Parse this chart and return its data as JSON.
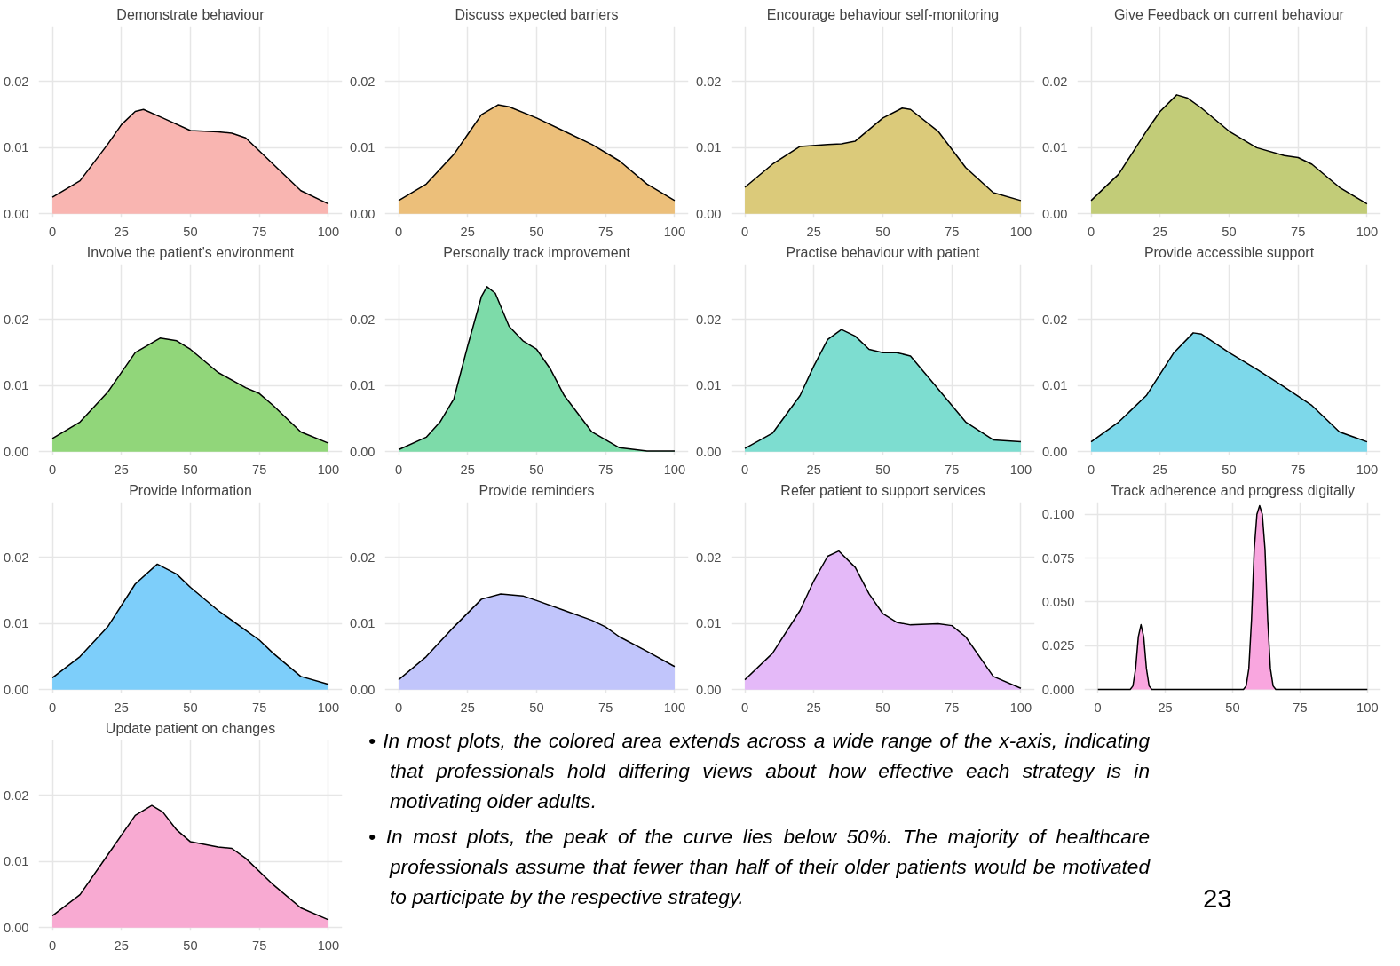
{
  "chart_data": [
    {
      "type": "area",
      "title": "Demonstrate behaviour",
      "color": "#f9b5b1",
      "x": [
        0,
        10,
        20,
        25,
        30,
        33,
        40,
        50,
        60,
        65,
        70,
        80,
        90,
        100
      ],
      "values": [
        0.0025,
        0.005,
        0.0105,
        0.0135,
        0.0155,
        0.0158,
        0.0145,
        0.0126,
        0.0124,
        0.0122,
        0.0115,
        0.0075,
        0.0035,
        0.0015
      ],
      "xlim": [
        -5,
        105
      ],
      "ylim": [
        -0.0005,
        0.0284
      ],
      "xticks": [
        0,
        25,
        50,
        75,
        100
      ],
      "yticks": [
        {
          "value": 0,
          "label": "0.00"
        },
        {
          "value": 0.01,
          "label": "0.01"
        },
        {
          "value": 0.02,
          "label": "0.02"
        }
      ],
      "grid": true
    },
    {
      "type": "area",
      "title": "Discuss expected barriers",
      "color": "#ecbf7a",
      "x": [
        0,
        10,
        20,
        25,
        30,
        36,
        40,
        50,
        60,
        70,
        80,
        90,
        100
      ],
      "values": [
        0.002,
        0.0045,
        0.009,
        0.012,
        0.015,
        0.0165,
        0.0162,
        0.0145,
        0.0125,
        0.0105,
        0.008,
        0.0045,
        0.002
      ],
      "xlim": [
        -5,
        105
      ],
      "ylim": [
        -0.0005,
        0.0284
      ],
      "xticks": [
        0,
        25,
        50,
        75,
        100
      ],
      "yticks": [
        {
          "value": 0,
          "label": "0.00"
        },
        {
          "value": 0.01,
          "label": "0.01"
        },
        {
          "value": 0.02,
          "label": "0.02"
        }
      ],
      "grid": true
    },
    {
      "type": "area",
      "title": "Encourage behaviour self-monitoring",
      "color": "#dbca7a",
      "x": [
        0,
        10,
        20,
        30,
        35,
        40,
        50,
        57,
        60,
        70,
        80,
        90,
        100
      ],
      "values": [
        0.004,
        0.0075,
        0.0102,
        0.0105,
        0.0106,
        0.011,
        0.0145,
        0.016,
        0.0158,
        0.0125,
        0.007,
        0.0032,
        0.002
      ],
      "xlim": [
        -5,
        105
      ],
      "ylim": [
        -0.0005,
        0.0284
      ],
      "xticks": [
        0,
        25,
        50,
        75,
        100
      ],
      "yticks": [
        {
          "value": 0,
          "label": "0.00"
        },
        {
          "value": 0.01,
          "label": "0.01"
        },
        {
          "value": 0.02,
          "label": "0.02"
        }
      ],
      "grid": true
    },
    {
      "type": "area",
      "title": "Give Feedback on current behaviour",
      "color": "#c2cc78",
      "x": [
        0,
        10,
        20,
        25,
        31,
        35,
        40,
        50,
        60,
        70,
        75,
        80,
        90,
        100
      ],
      "values": [
        0.002,
        0.006,
        0.0125,
        0.0155,
        0.018,
        0.0175,
        0.016,
        0.0125,
        0.01,
        0.0088,
        0.0085,
        0.0075,
        0.004,
        0.0015
      ],
      "xlim": [
        -5,
        105
      ],
      "ylim": [
        -0.0005,
        0.0284
      ],
      "xticks": [
        0,
        25,
        50,
        75,
        100
      ],
      "yticks": [
        {
          "value": 0,
          "label": "0.00"
        },
        {
          "value": 0.01,
          "label": "0.01"
        },
        {
          "value": 0.02,
          "label": "0.02"
        }
      ],
      "grid": true
    },
    {
      "type": "area",
      "title": "Involve the patient's environment",
      "color": "#91d67a",
      "x": [
        0,
        10,
        20,
        30,
        39,
        45,
        50,
        60,
        70,
        75,
        80,
        90,
        100
      ],
      "values": [
        0.002,
        0.0045,
        0.009,
        0.015,
        0.0172,
        0.0168,
        0.0155,
        0.012,
        0.0097,
        0.0088,
        0.007,
        0.003,
        0.0013
      ],
      "xlim": [
        -5,
        105
      ],
      "ylim": [
        -0.0005,
        0.0284
      ],
      "xticks": [
        0,
        25,
        50,
        75,
        100
      ],
      "yticks": [
        {
          "value": 0,
          "label": "0.00"
        },
        {
          "value": 0.01,
          "label": "0.01"
        },
        {
          "value": 0.02,
          "label": "0.02"
        }
      ],
      "grid": true
    },
    {
      "type": "area",
      "title": "Personally track improvement",
      "color": "#7ddba9",
      "x": [
        0,
        10,
        15,
        20,
        25,
        30,
        32,
        35,
        40,
        45,
        50,
        55,
        60,
        70,
        80,
        90,
        100
      ],
      "values": [
        0.0003,
        0.0022,
        0.0045,
        0.008,
        0.016,
        0.0235,
        0.025,
        0.024,
        0.019,
        0.0168,
        0.0155,
        0.0125,
        0.0085,
        0.003,
        0.0006,
        0.0001,
        0.0001
      ],
      "xlim": [
        -5,
        105
      ],
      "ylim": [
        -0.0005,
        0.0284
      ],
      "xticks": [
        0,
        25,
        50,
        75,
        100
      ],
      "yticks": [
        {
          "value": 0,
          "label": "0.00"
        },
        {
          "value": 0.01,
          "label": "0.01"
        },
        {
          "value": 0.02,
          "label": "0.02"
        }
      ],
      "grid": true
    },
    {
      "type": "area",
      "title": "Practise behaviour with patient",
      "color": "#7dddd0",
      "x": [
        0,
        10,
        20,
        25,
        30,
        35,
        40,
        45,
        50,
        55,
        60,
        70,
        80,
        90,
        100
      ],
      "values": [
        0.0005,
        0.0028,
        0.0085,
        0.013,
        0.017,
        0.0185,
        0.0175,
        0.0155,
        0.015,
        0.015,
        0.0145,
        0.0095,
        0.0045,
        0.0018,
        0.0015
      ],
      "xlim": [
        -5,
        105
      ],
      "ylim": [
        -0.0005,
        0.0284
      ],
      "xticks": [
        0,
        25,
        50,
        75,
        100
      ],
      "yticks": [
        {
          "value": 0,
          "label": "0.00"
        },
        {
          "value": 0.01,
          "label": "0.01"
        },
        {
          "value": 0.02,
          "label": "0.02"
        }
      ],
      "grid": true
    },
    {
      "type": "area",
      "title": "Provide accessible support",
      "color": "#7dd8ea",
      "x": [
        0,
        10,
        20,
        30,
        37,
        40,
        50,
        60,
        70,
        80,
        90,
        100
      ],
      "values": [
        0.0015,
        0.0045,
        0.0085,
        0.015,
        0.018,
        0.0178,
        0.015,
        0.0125,
        0.0098,
        0.007,
        0.003,
        0.0015
      ],
      "xlim": [
        -5,
        105
      ],
      "ylim": [
        -0.0005,
        0.0284
      ],
      "xticks": [
        0,
        25,
        50,
        75,
        100
      ],
      "yticks": [
        {
          "value": 0,
          "label": "0.00"
        },
        {
          "value": 0.01,
          "label": "0.01"
        },
        {
          "value": 0.02,
          "label": "0.02"
        }
      ],
      "grid": true
    },
    {
      "type": "area",
      "title": "Provide Information",
      "color": "#7dcefa",
      "x": [
        0,
        10,
        20,
        30,
        38,
        45,
        50,
        60,
        70,
        75,
        80,
        90,
        100
      ],
      "values": [
        0.0018,
        0.005,
        0.0095,
        0.016,
        0.019,
        0.0175,
        0.0155,
        0.012,
        0.009,
        0.0075,
        0.0055,
        0.002,
        0.0008
      ],
      "xlim": [
        -5,
        105
      ],
      "ylim": [
        -0.0005,
        0.0284
      ],
      "xticks": [
        0,
        25,
        50,
        75,
        100
      ],
      "yticks": [
        {
          "value": 0,
          "label": "0.00"
        },
        {
          "value": 0.01,
          "label": "0.01"
        },
        {
          "value": 0.02,
          "label": "0.02"
        }
      ],
      "grid": true
    },
    {
      "type": "area",
      "title": "Provide reminders",
      "color": "#c1c5fb",
      "x": [
        0,
        10,
        20,
        30,
        37,
        45,
        50,
        60,
        70,
        75,
        80,
        90,
        100
      ],
      "values": [
        0.0015,
        0.005,
        0.0095,
        0.0137,
        0.0145,
        0.0142,
        0.0135,
        0.012,
        0.0105,
        0.0095,
        0.008,
        0.0058,
        0.0035
      ],
      "xlim": [
        -5,
        105
      ],
      "ylim": [
        -0.0005,
        0.0284
      ],
      "xticks": [
        0,
        25,
        50,
        75,
        100
      ],
      "yticks": [
        {
          "value": 0,
          "label": "0.00"
        },
        {
          "value": 0.01,
          "label": "0.01"
        },
        {
          "value": 0.02,
          "label": "0.02"
        }
      ],
      "grid": true
    },
    {
      "type": "area",
      "title": "Refer patient to support services",
      "color": "#e4b9f8",
      "x": [
        0,
        10,
        20,
        25,
        30,
        34,
        40,
        45,
        50,
        55,
        60,
        70,
        75,
        80,
        90,
        100
      ],
      "values": [
        0.0015,
        0.0055,
        0.012,
        0.0165,
        0.0202,
        0.021,
        0.0185,
        0.0145,
        0.0115,
        0.0102,
        0.0098,
        0.01,
        0.0097,
        0.008,
        0.002,
        0.0002
      ],
      "xlim": [
        -5,
        105
      ],
      "ylim": [
        -0.0005,
        0.0284
      ],
      "xticks": [
        0,
        25,
        50,
        75,
        100
      ],
      "yticks": [
        {
          "value": 0,
          "label": "0.00"
        },
        {
          "value": 0.01,
          "label": "0.01"
        },
        {
          "value": 0.02,
          "label": "0.02"
        }
      ],
      "grid": true
    },
    {
      "type": "area",
      "title": "Track adherence and progress digitally",
      "color": "#f9a6df",
      "x": [
        0,
        12,
        13,
        14,
        15,
        16,
        17,
        18,
        19,
        20,
        54,
        55,
        56,
        57,
        58,
        59,
        60,
        61,
        62,
        63,
        64,
        65,
        66,
        100
      ],
      "values": [
        0,
        0,
        0.002,
        0.012,
        0.03,
        0.037,
        0.03,
        0.012,
        0.002,
        0,
        0,
        0.002,
        0.012,
        0.04,
        0.08,
        0.1,
        0.105,
        0.1,
        0.08,
        0.04,
        0.012,
        0.002,
        0,
        0
      ],
      "xlim": [
        -5,
        105
      ],
      "ylim": [
        -0.002,
        0.107
      ],
      "xticks": [
        0,
        25,
        50,
        75,
        100
      ],
      "yticks": [
        {
          "value": 0,
          "label": "0.000"
        },
        {
          "value": 0.025,
          "label": "0.025"
        },
        {
          "value": 0.05,
          "label": "0.050"
        },
        {
          "value": 0.075,
          "label": "0.075"
        },
        {
          "value": 0.1,
          "label": "0.100"
        }
      ],
      "grid": true
    },
    {
      "type": "area",
      "title": "Update patient on changes",
      "color": "#f8aad2",
      "x": [
        0,
        10,
        20,
        30,
        36,
        40,
        45,
        50,
        60,
        65,
        70,
        80,
        90,
        100
      ],
      "values": [
        0.0018,
        0.005,
        0.011,
        0.017,
        0.0185,
        0.0175,
        0.0148,
        0.013,
        0.0122,
        0.012,
        0.0105,
        0.0065,
        0.003,
        0.0012
      ],
      "xlim": [
        -5,
        105
      ],
      "ylim": [
        -0.0005,
        0.0284
      ],
      "xticks": [
        0,
        25,
        50,
        75,
        100
      ],
      "yticks": [
        {
          "value": 0,
          "label": "0.00"
        },
        {
          "value": 0.01,
          "label": "0.01"
        },
        {
          "value": 0.02,
          "label": "0.02"
        }
      ],
      "grid": true
    },
    {
      "type": "other",
      "annotations": [
        "• In most plots, the colored area extends across a wide range of the x-axis, indicating that professionals hold differing views about how effective each strategy is in motivating older adults.",
        "• In most plots, the peak of the curve lies below 50%. The majority of healthcare professionals assume that fewer than half of their older patients would be motivated to participate by the respective strategy.",
        "23"
      ]
    }
  ]
}
